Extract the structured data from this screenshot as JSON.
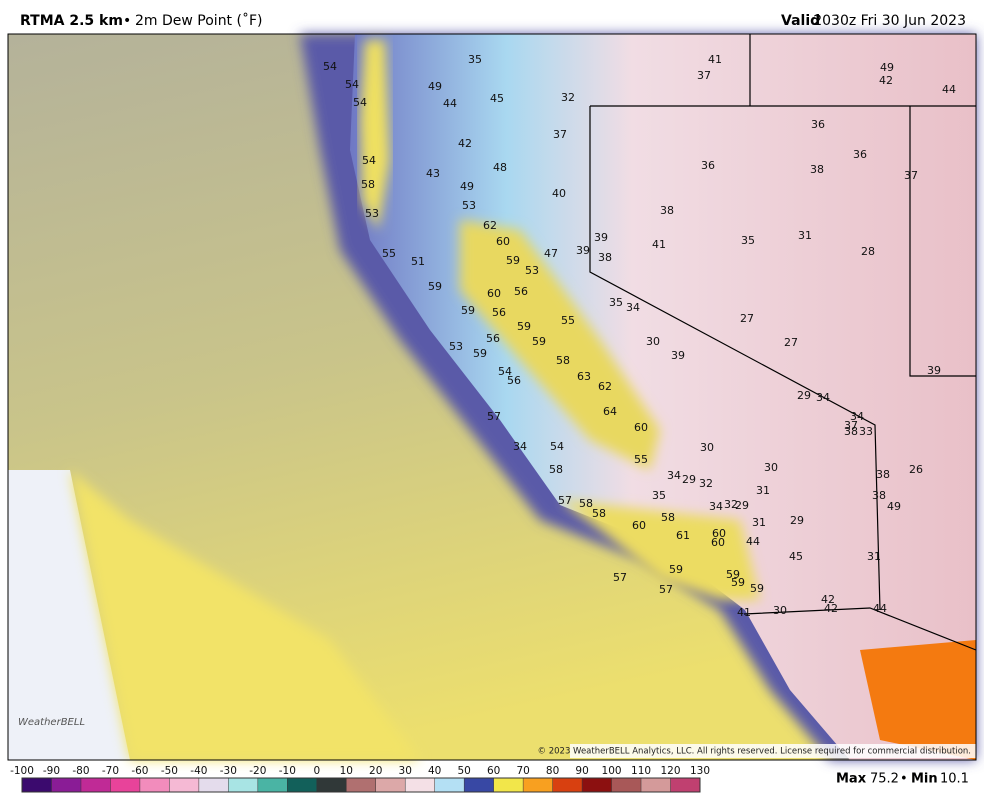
{
  "header": {
    "title": "RTMA 2.5 km",
    "separator": "•",
    "subtitle": "2m Dew Point (˚F)",
    "valid_label": "Valid",
    "valid_time": "2030z Fri 30 Jun 2023"
  },
  "map": {
    "stations": [
      54,
      54,
      54,
      35,
      49,
      44,
      45,
      32,
      41,
      37,
      49,
      42,
      44,
      37,
      42,
      36,
      36,
      54,
      43,
      48,
      36,
      38,
      37,
      58,
      49,
      40,
      53,
      53,
      38,
      62,
      60,
      39,
      41,
      35,
      31,
      28,
      55,
      47,
      39,
      38,
      51,
      59,
      53,
      59,
      60,
      56,
      35,
      34,
      59,
      56,
      55,
      27,
      59,
      56,
      59,
      30,
      39,
      27,
      53,
      59,
      58,
      54,
      56,
      63,
      62,
      39,
      29,
      34,
      64,
      57,
      34,
      37,
      38,
      33,
      60,
      34,
      54,
      30,
      55,
      26,
      30,
      58,
      34,
      29,
      32,
      38,
      31,
      35,
      38,
      57,
      58,
      34,
      32,
      29,
      49,
      58,
      31,
      29,
      60,
      58,
      61,
      60,
      60,
      44,
      45,
      31,
      59,
      59,
      59,
      59,
      57,
      57,
      42,
      42,
      44,
      41,
      30
    ],
    "copyright": "© 2023 WeatherBELL Analytics, LLC. All rights reserved. License required for commercial distribution.",
    "logo": "WeatherBELL"
  },
  "colorbar": {
    "ticks": [
      -100,
      -90,
      -80,
      -70,
      -60,
      -50,
      -40,
      -30,
      -20,
      -10,
      0,
      10,
      20,
      30,
      40,
      50,
      60,
      70,
      80,
      90,
      100,
      110,
      120,
      130
    ],
    "colors": [
      "#3b0a6e",
      "#8a1c96",
      "#c02a96",
      "#e8439a",
      "#f28cbc",
      "#f5b9d4",
      "#e4dcec",
      "#a8e4e4",
      "#4ab4a4",
      "#12605a",
      "#303838",
      "#b07070",
      "#dca8a8",
      "#f4e0e6",
      "#b4e0f4",
      "#3848a4",
      "#f2e64a",
      "#f8a020",
      "#d84010",
      "#8c1010",
      "#a85858",
      "#d49a9a",
      "#c04070",
      "#107048"
    ]
  },
  "stats": {
    "max_label": "Max",
    "max": "75.2",
    "sep": "•",
    "min_label": "Min",
    "min": "10.1"
  }
}
